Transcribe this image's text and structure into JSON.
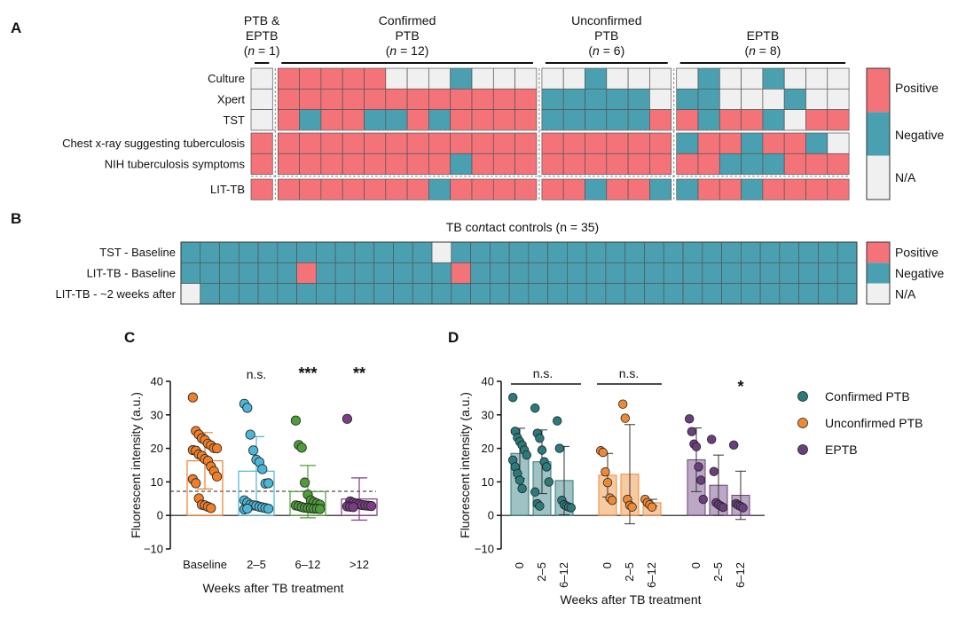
{
  "colors": {
    "positive": "#f47379",
    "negative": "#4aa0b0",
    "na": "#f0f0f0",
    "grid": "#555555",
    "baseline": "#f07f28",
    "w2_5": "#4cb6d6",
    "w6_12": "#4f9c3a",
    "w12p": "#7b3d84",
    "confirmed": "#2b7a7c",
    "unconfirmed": "#ee8a35",
    "eptb": "#6a3f7e"
  },
  "panel_labels": [
    "A",
    "B",
    "C",
    "D"
  ],
  "panel_a": {
    "groups": [
      {
        "label": "PTB &\nEPTB",
        "n": "(n = 1)",
        "count": 1
      },
      {
        "label": "Confirmed\nPTB",
        "n": "(n = 12)",
        "count": 12
      },
      {
        "label": "Unconfirmed\nPTB",
        "n": "(n = 6)",
        "count": 6
      },
      {
        "label": "EPTB",
        "n": "(n = 8)",
        "count": 8
      }
    ],
    "rows": [
      "Culture",
      "Xpert",
      "TST",
      "Chest x-ray suggesting tuberculosis",
      "NIH tuberculosis symptoms",
      "LIT-TB"
    ],
    "legend": [
      "Positive",
      "Negative",
      "N/A"
    ],
    "matrix": [
      "N PPPPPNNNGNNN NNGNNN NGNNGNNN",
      "N PPPPPPPPPPPP GGGGGN GGNNNGNN",
      "N PGPPGGPGPPPP GGGGGP PGPPGNPP",
      "P PPPPPPPPPPPP PPPPPP GPPGPPGN",
      "P PPPPPPPPGPPP PPPPPP PPGGGPPP",
      "P PPPPPPPGPPPP PPGPPG GPPGPPPP"
    ]
  },
  "panel_b": {
    "title": "TB contact controls (n = 35)",
    "rows": [
      "TST - Baseline",
      "LIT-TB - Baseline",
      "LIT-TB - ~2 weeks after"
    ],
    "legend": [
      "Positive",
      "Negative",
      "N/A"
    ],
    "matrix": [
      "GGGGGGGGGGGGGNGGGGGGGGGGGGGGGGGGGGG",
      "GGGGGGPGGGGGGGPGGGGGGGGGGGGGGGGGGGG",
      "NGGGGGGGGGGGGGGGGGGGGGGGGGGGGGGGGGG"
    ]
  },
  "chart_data": [
    {
      "type": "bar",
      "categories": [
        "Baseline",
        "2–5",
        "6–12",
        ">12"
      ],
      "values": [
        16.3,
        13.2,
        7.1,
        4.9
      ],
      "sd": [
        8.4,
        10.3,
        7.8,
        6.3
      ],
      "points": [
        [
          35.2,
          25.2,
          24.1,
          23.0,
          22.5,
          21.4,
          20.9,
          20.1,
          20.0,
          19.5,
          19.3,
          18.2,
          17.8,
          16.8,
          16.3,
          14.6,
          13.2,
          11.6,
          10.8,
          9.6,
          5.1,
          3.2,
          3.0,
          2.6,
          2.2
        ],
        [
          33.3,
          32.1,
          24.1,
          19.4,
          16.6,
          15.9,
          13.8,
          9.5,
          9.6,
          4.5,
          3.8,
          3.2,
          3.0,
          2.9,
          2.6,
          2.4,
          2.2,
          2.0,
          1.8,
          2.0
        ],
        [
          28.3,
          21.0,
          20.2,
          9.8,
          6.2,
          4.5,
          4.0,
          3.6,
          3.2,
          3.0,
          2.8,
          2.5,
          2.3,
          2.2,
          2.1,
          2.0,
          2.0,
          1.9
        ],
        [
          28.8,
          4.2,
          3.8,
          3.5,
          3.3,
          3.1,
          3.0,
          2.9,
          2.8,
          2.7,
          2.6,
          2.5
        ]
      ],
      "significance": [
        "",
        "n.s.",
        "***",
        "**"
      ],
      "threshold": 7.2,
      "ylim": [
        -10,
        40
      ],
      "yticks": [
        -10,
        0,
        10,
        20,
        30,
        40
      ],
      "xlabel": "Weeks after TB treatment",
      "ylabel": "Fluorescent intensity (a.u.)"
    },
    {
      "type": "bar",
      "group_ticks": [
        "0",
        "2–5",
        "6–12"
      ],
      "series": [
        {
          "name": "Confirmed PTB",
          "values": [
            18.5,
            16.0,
            10.4
          ],
          "sd": [
            7.5,
            9.5,
            10.2
          ],
          "points": [
            [
              35.2,
              25.1,
              23.2,
              22.0,
              21.0,
              19.5,
              18.0,
              16.5,
              14.5,
              12.5,
              10.5,
              8.0
            ],
            [
              32.0,
              24.5,
              23.0,
              19.5,
              16.0,
              14.5,
              10.0,
              7.0,
              3.5,
              2.8
            ],
            [
              28.2,
              20.0,
              4.5,
              3.2,
              2.8,
              2.5,
              2.3
            ]
          ]
        },
        {
          "name": "Unconfirmed PTB",
          "values": [
            12.0,
            12.3,
            3.8
          ],
          "sd": [
            6.5,
            14.8,
            1.0
          ],
          "points": [
            [
              19.3,
              18.8,
              13.0,
              9.8,
              5.2,
              4.5
            ],
            [
              33.2,
              29.0,
              4.8,
              3.0,
              2.5
            ],
            [
              4.8,
              3.8,
              3.2,
              2.5
            ]
          ]
        },
        {
          "name": "EPTB",
          "values": [
            16.6,
            9.0,
            6.0
          ],
          "sd": [
            9.5,
            9.0,
            7.2
          ],
          "points": [
            [
              28.8,
              25.0,
              21.3,
              20.5,
              14.5,
              10.5,
              4.8
            ],
            [
              22.7,
              13.1,
              3.8,
              3.2,
              2.8,
              2.4
            ],
            [
              21.0,
              3.5,
              3.0,
              2.7,
              2.3
            ]
          ]
        }
      ],
      "significance": [
        {
          "label": "n.s.",
          "group": 0
        },
        {
          "label": "n.s.",
          "group": 1
        },
        {
          "label": "*",
          "group": 2
        }
      ],
      "ylim": [
        -10,
        40
      ],
      "yticks": [
        -10,
        0,
        10,
        20,
        30,
        40
      ],
      "xlabel": "Weeks after TB treatment",
      "ylabel": "Fluorescent intensity (a.u.)",
      "legend": [
        "Confirmed PTB",
        "Unconfirmed PTB",
        "EPTB"
      ]
    }
  ]
}
